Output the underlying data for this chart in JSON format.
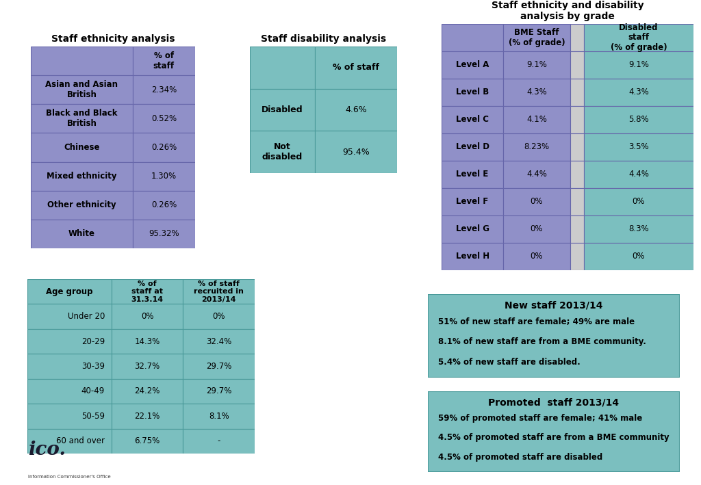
{
  "bg_color": "#ffffff",
  "ethnicity_title": "Staff ethnicity analysis",
  "ethnicity_headers": [
    "",
    "% of\nstaff"
  ],
  "ethnicity_rows": [
    [
      "Asian and Asian\nBritish",
      "2.34%"
    ],
    [
      "Black and Black\nBritish",
      "0.52%"
    ],
    [
      "Chinese",
      "0.26%"
    ],
    [
      "Mixed ethnicity",
      "1.30%"
    ],
    [
      "Other ethnicity",
      "0.26%"
    ],
    [
      "White",
      "95.32%"
    ]
  ],
  "ethnicity_header_color": "#9090c8",
  "ethnicity_cell_color": "#9090c8",
  "disability_title": "Staff disability analysis",
  "disability_headers": [
    "",
    "% of staff"
  ],
  "disability_rows": [
    [
      "Disabled",
      "4.6%"
    ],
    [
      "Not\ndisabled",
      "95.4%"
    ]
  ],
  "disability_header_color": "#7bbfbf",
  "disability_cell_color": "#7bbfbf",
  "grade_title": "Staff ethnicity and disability\nanalysis by grade",
  "grade_headers": [
    "",
    "BME Staff\n(% of grade)",
    "",
    "Disabled\nstaff\n(% of grade)"
  ],
  "grade_rows": [
    [
      "Level A",
      "9.1%",
      "",
      "9.1%"
    ],
    [
      "Level B",
      "4.3%",
      "",
      "4.3%"
    ],
    [
      "Level C",
      "4.1%",
      "",
      "5.8%"
    ],
    [
      "Level D",
      "8.23%",
      "",
      "3.5%"
    ],
    [
      "Level E",
      "4.4%",
      "",
      "4.4%"
    ],
    [
      "Level F",
      "0%",
      "",
      "0%"
    ],
    [
      "Level G",
      "0%",
      "",
      "8.3%"
    ],
    [
      "Level H",
      "0%",
      "",
      "0%"
    ]
  ],
  "grade_col1_color": "#9090c8",
  "grade_col2_color": "#9090c8",
  "grade_col3_color": "#cccccc",
  "grade_col4_color": "#7bbfbf",
  "age_headers": [
    "Age group",
    "% of\nstaff at\n31.3.14",
    "% of staff\nrecruited in\n2013/14"
  ],
  "age_rows": [
    [
      "Under 20",
      "0%",
      "0%"
    ],
    [
      "20-29",
      "14.3%",
      "32.4%"
    ],
    [
      "30-39",
      "32.7%",
      "29.7%"
    ],
    [
      "40-49",
      "24.2%",
      "29.7%"
    ],
    [
      "50-59",
      "22.1%",
      "8.1%"
    ],
    [
      "60 and over",
      "6.75%",
      "-"
    ]
  ],
  "age_header_color": "#7bbfbf",
  "age_cell_color": "#7bbfbf",
  "new_staff_title": "New staff 2013/14",
  "new_staff_lines": [
    "51% of new staff are female; 49% are male",
    "8.1% of new staff are from a BME community.",
    "5.4% of new staff are disabled."
  ],
  "promoted_title": "Promoted  staff 2013/14",
  "promoted_lines": [
    "59% of promoted staff are female; 41% male",
    "4.5% of promoted staff are from a BME community",
    "4.5% of promoted staff are disabled"
  ],
  "box_color": "#7bbfbf",
  "box_edge_color": "#4a9a9a",
  "edge_color_purple": "#6666aa",
  "edge_color_teal": "#4a9a9a"
}
